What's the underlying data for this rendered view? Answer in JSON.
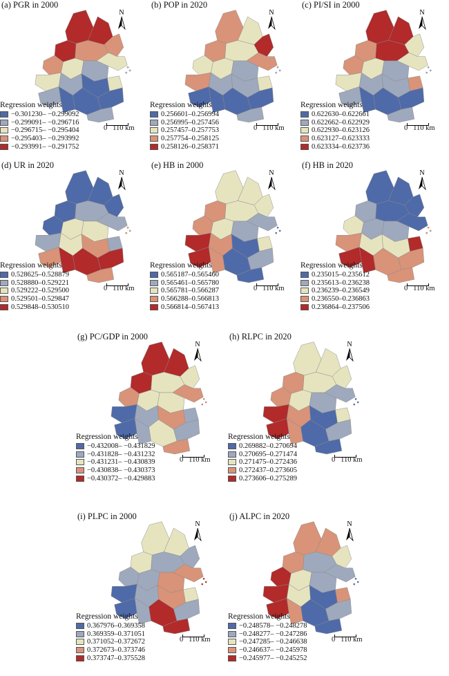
{
  "legend_title": "Regression weights",
  "scale_label": "0   110 km",
  "north_label": "N",
  "colors": {
    "c1": "#4f6aa8",
    "c2": "#9ea9bd",
    "c3": "#e6e4bf",
    "c4": "#d99378",
    "c5": "#b22a2a"
  },
  "panels": [
    {
      "title": "(a) PGR in 2000",
      "classes": [
        "−0.301230– −0.299092",
        "−0.299091– −0.296716",
        "−0.296715– −0.295404",
        "−0.295403– −0.293992",
        "−0.293991– −0.291752"
      ],
      "regions": [
        5,
        5,
        4,
        5,
        4,
        3,
        4,
        3,
        2,
        3,
        2,
        1,
        2,
        1,
        1,
        3,
        1,
        2
      ]
    },
    {
      "title": "(b) POP in 2020",
      "classes": [
        "0.256601–0.256994",
        "0.256995–0.257456",
        "0.257457–0.257753",
        "0.257754–0.258125",
        "0.258126–0.258371"
      ],
      "regions": [
        4,
        3,
        5,
        4,
        3,
        4,
        3,
        3,
        2,
        4,
        2,
        2,
        1,
        1,
        1,
        3,
        1,
        2
      ]
    },
    {
      "title": "(c) PI/SI in 2000",
      "classes": [
        "0.622630–0.622661",
        "0.622662–0.622929",
        "0.622930–0.623126",
        "0.623127–0.623333",
        "0.623334–0.623736"
      ],
      "regions": [
        5,
        5,
        3,
        4,
        5,
        3,
        4,
        3,
        2,
        3,
        2,
        2,
        2,
        1,
        1,
        4,
        1,
        2
      ]
    },
    {
      "title": "(d) UR in 2020",
      "classes": [
        "0.528625–0.528879",
        "0.528880–0.529221",
        "0.529222–0.529500",
        "0.529501–0.529847",
        "0.529848–0.530510"
      ],
      "regions": [
        1,
        1,
        1,
        1,
        2,
        2,
        1,
        3,
        3,
        2,
        3,
        4,
        4,
        5,
        5,
        2,
        5,
        4
      ]
    },
    {
      "title": "(e) HB in 2000",
      "classes": [
        "0.565187–0.565460",
        "0.565461–0.565780",
        "0.565781–0.566287",
        "0.566288–0.566813",
        "0.566814–0.567413"
      ],
      "regions": [
        3,
        3,
        3,
        4,
        3,
        2,
        4,
        3,
        2,
        5,
        4,
        1,
        5,
        4,
        1,
        3,
        2,
        1
      ]
    },
    {
      "title": "(f) HB in 2020",
      "classes": [
        "0.235015–0.235612",
        "0.235613–0.236238",
        "0.236239–0.236549",
        "0.236550–0.236863",
        "0.236864–0.237506"
      ],
      "regions": [
        1,
        1,
        1,
        2,
        1,
        1,
        3,
        2,
        2,
        4,
        3,
        3,
        5,
        5,
        4,
        5,
        4,
        4
      ]
    },
    {
      "title": "(g) PC/GDP in 2000",
      "classes": [
        "−0.432008– −0.431829",
        "−0.431828– −0.431232",
        "−0.431231– −0.430839",
        "−0.430838– −0.430373",
        "−0.430372– −0.429883"
      ],
      "regions": [
        5,
        5,
        3,
        5,
        3,
        4,
        4,
        3,
        3,
        1,
        2,
        4,
        1,
        2,
        3,
        2,
        2,
        4
      ]
    },
    {
      "title": "(h) RLPC in 2020",
      "classes": [
        "0.269882–0.270694",
        "0.270695–0.271474",
        "0.271475–0.272436",
        "0.272437–0.273605",
        "0.273606–0.275289"
      ],
      "regions": [
        3,
        3,
        3,
        4,
        3,
        2,
        4,
        3,
        2,
        5,
        4,
        1,
        5,
        4,
        1,
        3,
        2,
        1
      ]
    },
    {
      "title": "(i) PLPC in 2000",
      "classes": [
        "0.367976–0.369358",
        "0.369359–0.371051",
        "0.371052–0.372672",
        "0.372673–0.373746",
        "0.373747–0.375528"
      ],
      "regions": [
        3,
        3,
        2,
        3,
        2,
        4,
        2,
        2,
        4,
        1,
        2,
        4,
        1,
        2,
        5,
        3,
        2,
        5
      ]
    },
    {
      "title": "(j) ALPC in 2020",
      "classes": [
        "−0.248578– −0.248278",
        "−0.248277– −0.247286",
        "−0.247285– −0.246638",
        "−0.246637– −0.245978",
        "−0.245977– −0.245252"
      ],
      "regions": [
        4,
        4,
        3,
        4,
        2,
        2,
        5,
        3,
        2,
        5,
        3,
        1,
        5,
        4,
        1,
        4,
        2,
        1
      ]
    }
  ]
}
